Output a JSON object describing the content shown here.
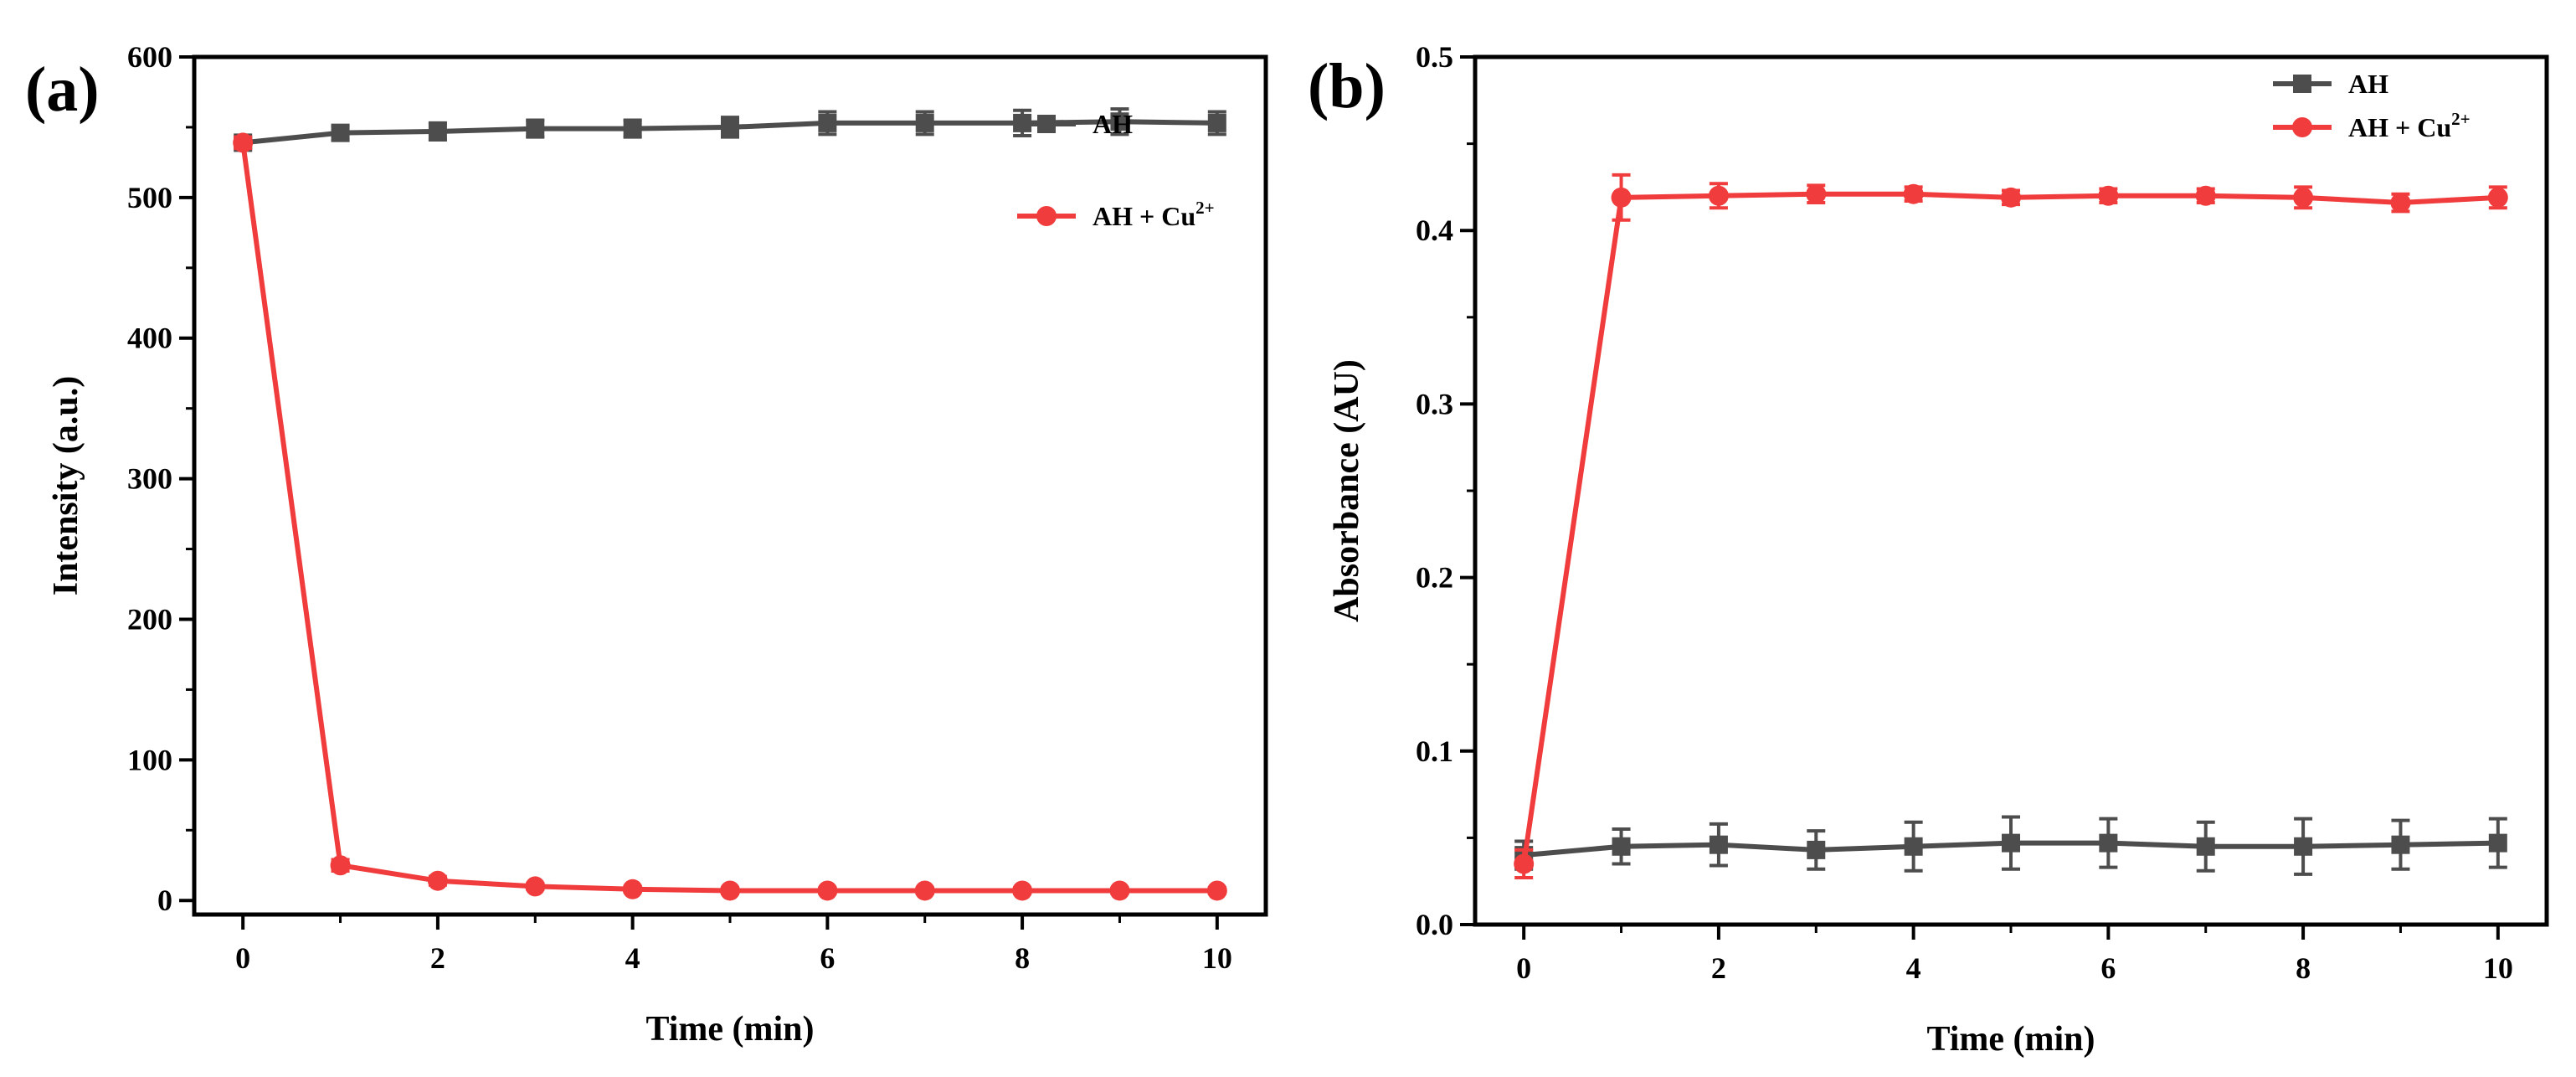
{
  "chart_data": [
    {
      "type": "line",
      "panel_label": "(a)",
      "xlabel": "Time (min)",
      "ylabel": "Intensity (a.u.)",
      "xlim": [
        -0.5,
        10.5
      ],
      "ylim": [
        -10,
        600
      ],
      "xticks": [
        0,
        2,
        4,
        6,
        8,
        10
      ],
      "yticks": [
        0,
        100,
        200,
        300,
        400,
        500,
        600
      ],
      "x": [
        0,
        1,
        2,
        3,
        4,
        5,
        6,
        7,
        8,
        9,
        10
      ],
      "legend_position": "top-right",
      "series": [
        {
          "name": "AH",
          "legend_main": "AH",
          "legend_sup": "",
          "color": "#4d4d4d",
          "marker": "square",
          "values": [
            539,
            546,
            547,
            549,
            549,
            550,
            553,
            553,
            553,
            554,
            553
          ],
          "errors": [
            4,
            5,
            6,
            6,
            6,
            7,
            8,
            8,
            9,
            9,
            8
          ]
        },
        {
          "name": "AH + Cu2+",
          "legend_main": "AH + Cu",
          "legend_sup": "2+",
          "color": "#f03c3c",
          "marker": "circle",
          "values": [
            539,
            25,
            14,
            10,
            8,
            7,
            7,
            7,
            7,
            7,
            7
          ],
          "errors": [
            4,
            4,
            3,
            2,
            2,
            2,
            2,
            2,
            2,
            2,
            2
          ]
        }
      ]
    },
    {
      "type": "line",
      "panel_label": "(b)",
      "xlabel": "Time (min)",
      "ylabel": "Absorbance (AU)",
      "xlim": [
        -0.5,
        10.5
      ],
      "ylim": [
        0.0,
        0.5
      ],
      "xticks": [
        0,
        2,
        4,
        6,
        8,
        10
      ],
      "yticks": [
        0.0,
        0.1,
        0.2,
        0.3,
        0.4,
        0.5
      ],
      "x": [
        0,
        1,
        2,
        3,
        4,
        5,
        6,
        7,
        8,
        9,
        10
      ],
      "legend_position": "top-right",
      "series": [
        {
          "name": "AH",
          "legend_main": "AH",
          "legend_sup": "",
          "color": "#4d4d4d",
          "marker": "square",
          "values": [
            0.04,
            0.045,
            0.046,
            0.043,
            0.045,
            0.047,
            0.047,
            0.045,
            0.045,
            0.046,
            0.047
          ],
          "errors": [
            0.008,
            0.01,
            0.012,
            0.011,
            0.014,
            0.015,
            0.014,
            0.014,
            0.016,
            0.014,
            0.014
          ]
        },
        {
          "name": "AH + Cu2+",
          "legend_main": "AH + Cu",
          "legend_sup": "2+",
          "color": "#f03c3c",
          "marker": "circle",
          "values": [
            0.035,
            0.419,
            0.42,
            0.421,
            0.421,
            0.419,
            0.42,
            0.42,
            0.419,
            0.416,
            0.419
          ],
          "errors": [
            0.008,
            0.013,
            0.007,
            0.005,
            0.004,
            0.004,
            0.004,
            0.004,
            0.006,
            0.005,
            0.006
          ]
        }
      ]
    }
  ]
}
